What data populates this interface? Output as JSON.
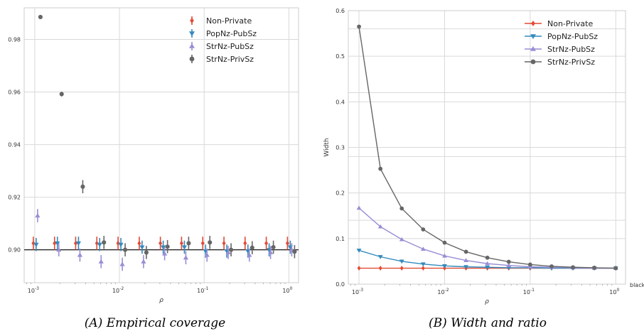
{
  "colors": {
    "Non-Private": "#e24a33",
    "PopNz-PubSz": "#348abd",
    "StrNz-PubSz": "#988ed5",
    "StrNz-PrivSz": "#666666",
    "grid": "#d9d9d9",
    "refline": "#000000"
  },
  "x_tick_labels": [
    "10",
    "10",
    "10",
    "10"
  ],
  "x_tick_exponents": [
    "-3",
    "-2",
    "-1",
    "0"
  ],
  "chart_data": [
    {
      "type": "scatter",
      "caption": "(A)  Empirical coverage",
      "xlabel": "ρ",
      "ylabel": "",
      "xscale": "log",
      "xlim": [
        0.00075,
        1.3
      ],
      "ylim": [
        0.8875,
        0.992
      ],
      "yticks": [
        0.9,
        0.92,
        0.94,
        0.96,
        0.98
      ],
      "ytick_labels": [
        "0.90",
        "0.92",
        "0.94",
        "0.96",
        "0.98"
      ],
      "reference_line": 0.9,
      "grid": true,
      "legend": "top-right",
      "x": [
        0.001,
        0.00178,
        0.00316,
        0.00562,
        0.01,
        0.0178,
        0.0316,
        0.0562,
        0.1,
        0.178,
        0.316,
        0.562,
        1.0
      ],
      "series": [
        {
          "name": "Non-Private",
          "marker": "diamond",
          "values": [
            0.9025,
            0.9025,
            0.9025,
            0.9025,
            0.9025,
            0.9025,
            0.9025,
            0.9025,
            0.9025,
            0.9025,
            0.9025,
            0.9025,
            0.9025
          ],
          "err": [
            0.0025,
            0.0025,
            0.0025,
            0.0025,
            0.0025,
            0.0025,
            0.0025,
            0.0025,
            0.0025,
            0.0025,
            0.0025,
            0.0025,
            0.0025
          ]
        },
        {
          "name": "PopNz-PubSz",
          "marker": "triangle-down",
          "values": [
            0.902,
            0.9025,
            0.9025,
            0.902,
            0.902,
            0.901,
            0.901,
            0.901,
            0.8995,
            0.8995,
            0.8995,
            0.9,
            0.901
          ],
          "err": [
            0.0025,
            0.0025,
            0.0025,
            0.0025,
            0.0025,
            0.0025,
            0.0025,
            0.0025,
            0.0025,
            0.0025,
            0.0025,
            0.0025,
            0.0025
          ]
        },
        {
          "name": "StrNz-PubSz",
          "marker": "triangle-up",
          "values": [
            0.913,
            0.9,
            0.898,
            0.8955,
            0.8945,
            0.8955,
            0.8985,
            0.897,
            0.898,
            0.899,
            0.898,
            0.899,
            0.9
          ],
          "err": [
            0.0025,
            0.0025,
            0.0025,
            0.0025,
            0.0025,
            0.0025,
            0.0025,
            0.0025,
            0.0025,
            0.0025,
            0.0025,
            0.0025,
            0.0025
          ]
        },
        {
          "name": "StrNz-PrivSz",
          "marker": "circle",
          "values": [
            0.9885,
            0.9592,
            0.924,
            0.9028,
            0.9,
            0.899,
            0.9012,
            0.9025,
            0.9028,
            0.9,
            0.9008,
            0.901,
            0.8993
          ],
          "err": [
            0.0006,
            0.0009,
            0.0025,
            0.0025,
            0.0025,
            0.0025,
            0.0025,
            0.0025,
            0.0025,
            0.0025,
            0.0025,
            0.0025,
            0.0025
          ]
        }
      ]
    },
    {
      "type": "line",
      "caption": "(B)  Width and ratio",
      "xlabel": "ρ",
      "ylabel": "Width",
      "side_label": "black",
      "xscale": "log",
      "xlim": [
        0.00075,
        1.3
      ],
      "ylim": [
        0.0,
        0.6
      ],
      "yticks": [
        0.0,
        0.1,
        0.2,
        0.3,
        0.4,
        0.5,
        0.6
      ],
      "ytick_labels": [
        "0.0",
        "0.1",
        "0.2",
        "0.3",
        "0.4",
        "0.5",
        "0.6"
      ],
      "extra_gridlines": [
        0.14,
        0.28,
        0.42,
        0.56
      ],
      "grid": true,
      "legend": "top-right",
      "x": [
        0.001,
        0.00178,
        0.00316,
        0.00562,
        0.01,
        0.0178,
        0.0316,
        0.0562,
        0.1,
        0.178,
        0.316,
        0.562,
        1.0
      ],
      "series": [
        {
          "name": "Non-Private",
          "marker": "diamond",
          "values": [
            0.035,
            0.035,
            0.035,
            0.035,
            0.035,
            0.035,
            0.035,
            0.035,
            0.035,
            0.035,
            0.035,
            0.035,
            0.035
          ]
        },
        {
          "name": "PopNz-PubSz",
          "marker": "triangle-down",
          "values": [
            0.074,
            0.06,
            0.05,
            0.044,
            0.04,
            0.038,
            0.037,
            0.036,
            0.036,
            0.035,
            0.035,
            0.035,
            0.035
          ]
        },
        {
          "name": "StrNz-PubSz",
          "marker": "triangle-up",
          "values": [
            0.167,
            0.126,
            0.098,
            0.077,
            0.062,
            0.052,
            0.045,
            0.041,
            0.038,
            0.037,
            0.036,
            0.035,
            0.035
          ]
        },
        {
          "name": "StrNz-PrivSz",
          "marker": "circle",
          "values": [
            0.565,
            0.253,
            0.166,
            0.12,
            0.091,
            0.071,
            0.058,
            0.049,
            0.043,
            0.039,
            0.037,
            0.036,
            0.035
          ]
        }
      ]
    }
  ]
}
